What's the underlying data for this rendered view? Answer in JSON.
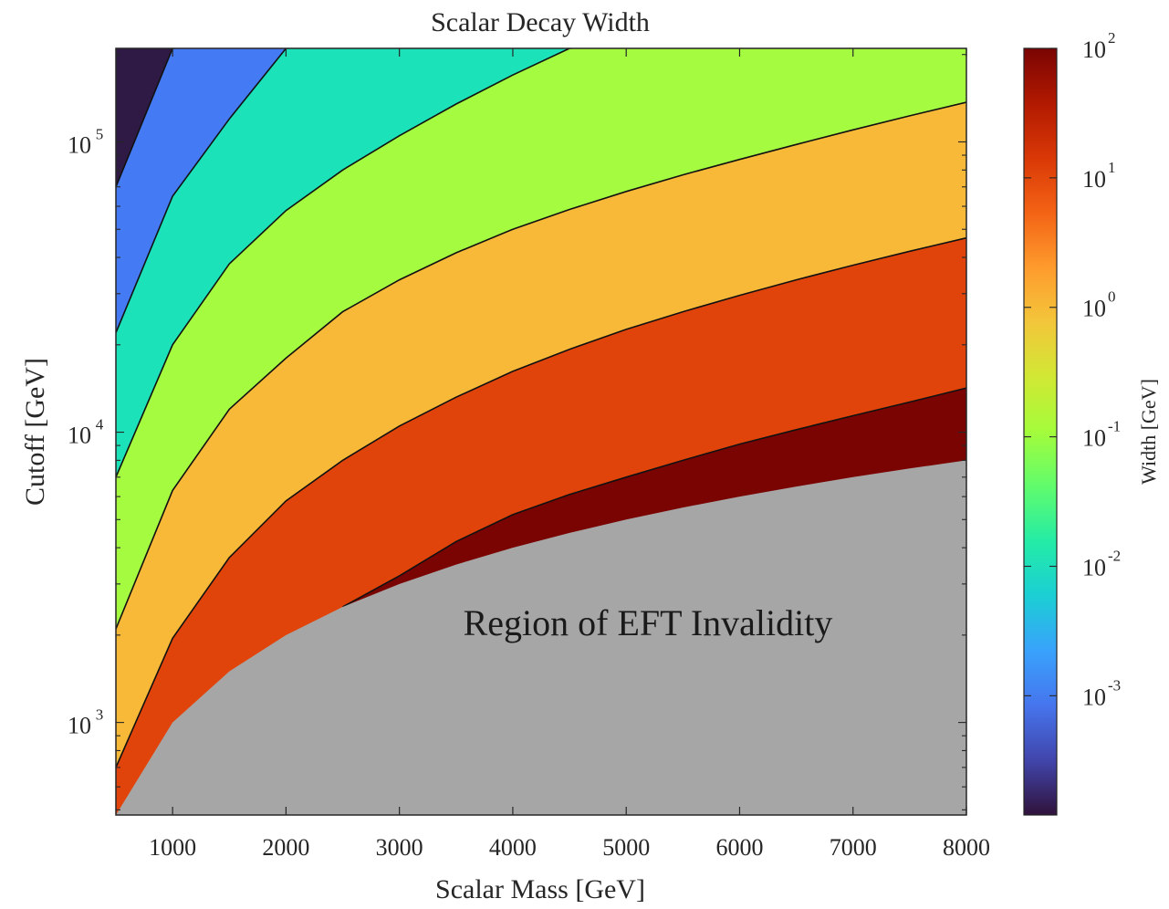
{
  "chart_data": {
    "type": "heatmap",
    "subtype": "filled-contour",
    "title": "Scalar Decay Width",
    "xlabel": "Scalar Mass [GeV]",
    "ylabel": "Cutoff [GeV]",
    "colorbar_label": "Width [GeV]",
    "annotation": "Region of EFT Invalidity",
    "xlim": [
      500,
      8000
    ],
    "ylim": [
      480,
      210000
    ],
    "y_scale": "log",
    "x_ticks": [
      1000,
      2000,
      3000,
      4000,
      5000,
      6000,
      7000,
      8000
    ],
    "y_ticks": [
      {
        "value": 1000,
        "label": "10",
        "exp": "3"
      },
      {
        "value": 10000,
        "label": "10",
        "exp": "4"
      },
      {
        "value": 100000,
        "label": "10",
        "exp": "5"
      }
    ],
    "colorbar": {
      "scale": "log",
      "range": [
        0.00012,
        100
      ],
      "ticks": [
        {
          "value": 0.001,
          "label": "10",
          "exp": "-3"
        },
        {
          "value": 0.01,
          "label": "10",
          "exp": "-2"
        },
        {
          "value": 0.1,
          "label": "10",
          "exp": "-1"
        },
        {
          "value": 1,
          "label": "10",
          "exp": "0"
        },
        {
          "value": 10,
          "label": "10",
          "exp": "1"
        },
        {
          "value": 100,
          "label": "10",
          "exp": "2"
        }
      ],
      "colormap": [
        "#30123b",
        "#4145ab",
        "#4675ed",
        "#39a2fc",
        "#1bcfd4",
        "#24eca6",
        "#61fc6c",
        "#a4fc3b",
        "#d1e834",
        "#f3c63a",
        "#fe9b2d",
        "#f36315",
        "#d93806",
        "#b11901",
        "#7a0402"
      ]
    },
    "invalid_region_color": "#a6a6a6",
    "x": [
      500,
      1000,
      1500,
      2000,
      2500,
      3000,
      3500,
      4000,
      4500,
      5000,
      5500,
      6000,
      6500,
      7000,
      7500,
      8000
    ],
    "invalid_boundary": [
      480,
      1000,
      1500,
      2000,
      2500,
      3000,
      3500,
      4000,
      4500,
      5000,
      5500,
      6000,
      6500,
      7000,
      7500,
      8000
    ],
    "contours": [
      {
        "level": 100,
        "color": "#7a0402",
        "start_x": 2500,
        "y": [
          null,
          null,
          null,
          null,
          2500,
          3200,
          4200,
          5200,
          6100,
          7000,
          8000,
          9100,
          10200,
          11400,
          12700,
          14200
        ]
      },
      {
        "level": 10,
        "color": "#e1440b",
        "y": [
          700,
          1950,
          3700,
          5800,
          8000,
          10500,
          13200,
          16200,
          19300,
          22600,
          26000,
          29600,
          33500,
          37600,
          42000,
          46700
        ]
      },
      {
        "level": 1,
        "color": "#f8b838",
        "y": [
          2100,
          6300,
          12000,
          18000,
          26000,
          33500,
          41500,
          50000,
          58500,
          67500,
          77000,
          87000,
          98000,
          110000,
          123000,
          137000
        ]
      },
      {
        "level": 0.1,
        "color": "#a5fb40",
        "y": [
          7000,
          20000,
          38000,
          58000,
          80000,
          105000,
          135000,
          170000,
          210000,
          null,
          null,
          null,
          null,
          null,
          null,
          null
        ]
      },
      {
        "level": 0.01,
        "color": "#1be2b8",
        "y": [
          22000,
          65000,
          120000,
          210000,
          null,
          null,
          null,
          null,
          null,
          null,
          null,
          null,
          null,
          null,
          null,
          null
        ]
      },
      {
        "level": 0.001,
        "color": "#447bf4",
        "y": [
          70000,
          210000,
          null,
          null,
          null,
          null,
          null,
          null,
          null,
          null,
          null,
          null,
          null,
          null,
          null,
          null
        ]
      }
    ],
    "above_last_contour_color": "#2e1a45",
    "grid": false
  }
}
